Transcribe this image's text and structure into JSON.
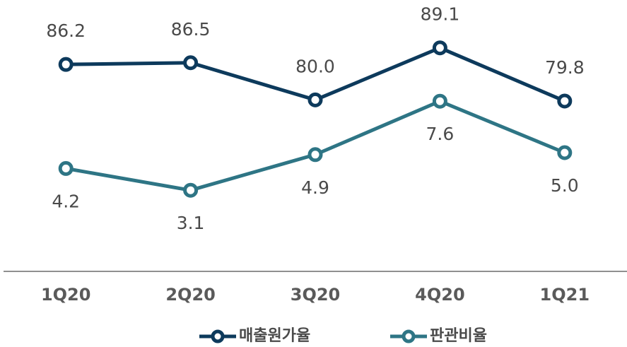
{
  "chart_data": {
    "type": "line",
    "categories": [
      "1Q20",
      "2Q20",
      "3Q20",
      "4Q20",
      "1Q21"
    ],
    "ylim": [
      50,
      95
    ],
    "y2lim": [
      -1,
      12
    ],
    "series": [
      {
        "name": "매출원가율",
        "color": "#0d3a5c",
        "values": [
          86.2,
          86.5,
          80.0,
          89.1,
          79.8
        ],
        "value_labels": [
          "86.2",
          "86.5",
          "80.0",
          "89.1",
          "79.8"
        ]
      },
      {
        "name": "판관비율",
        "color": "#2e7585",
        "axis": "y2",
        "values": [
          4.2,
          3.1,
          4.9,
          7.6,
          5.0
        ],
        "value_labels": [
          "4.2",
          "3.1",
          "4.9",
          "7.6",
          "5.0"
        ]
      }
    ]
  }
}
